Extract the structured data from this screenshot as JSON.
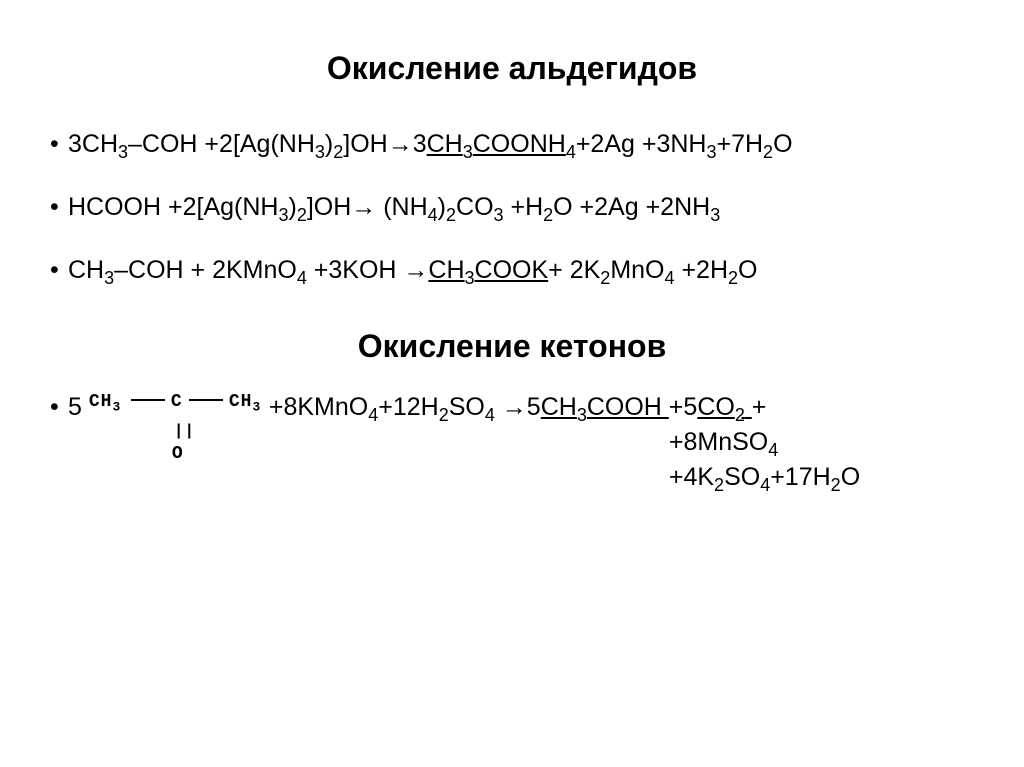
{
  "title_aldehydes": "Окисление альдегидов",
  "title_ketones": "Окисление кетонов",
  "colors": {
    "text": "#000000",
    "background": "#ffffff"
  },
  "typography": {
    "title_fontsize": 32,
    "title_fontweight": "bold",
    "body_fontsize": 25,
    "font_family": "Arial"
  },
  "aldehyde_eqs": {
    "eq1": {
      "lhs_a": "3CH",
      "lhs_b": "–COH +2[Ag(NH",
      "lhs_c": ")",
      "lhs_d": "]OH→3",
      "prod_ul_a": "CH",
      "prod_ul_b": "COONH",
      "rhs_a": "+2Ag +3NH",
      "rhs_b": "+7H",
      "rhs_c": "O"
    },
    "eq2": {
      "lhs": "HCOOH +2[Ag(NH",
      "lhs_b": ")",
      "lhs_c": "]OH→ (NH",
      "lhs_d": ")",
      "lhs_e": "CO",
      "rhs_a": " +H",
      "rhs_b": "O +2Ag +2NH"
    },
    "eq3": {
      "lhs_a": "CH",
      "lhs_b": "–COH + 2KMnO",
      "lhs_c": " +3KOH →",
      "prod_ul_a": "CH",
      "prod_ul_b": "COOK",
      "rhs_a": "+ 2K",
      "rhs_b": "MnO",
      "rhs_c": " +2H",
      "rhs_d": "O"
    }
  },
  "ketone_eq": {
    "coeff": "5",
    "struct": {
      "ch3l": "CH",
      "c": "C",
      "ch3r": "CH",
      "dbl": "||",
      "o": "O"
    },
    "rhs_line1_a": " +8KMnO",
    "rhs_line1_b": "+12H",
    "rhs_line1_c": "SO",
    "rhs_line1_d": " →5",
    "prod_ul_a": "CH",
    "prod_ul_b": "COOH ",
    "rhs_line1_e": "+5",
    "prod2_ul": "CO",
    "rhs_line1_f": "+",
    "rhs_line2_a": "+8MnSO",
    "rhs_line2_b": " +4K",
    "rhs_line2_c": "SO",
    "rhs_line2_d": "+17H",
    "rhs_line2_e": "O"
  },
  "subscripts": {
    "s2": "2",
    "s3": "3",
    "s4": "4"
  }
}
